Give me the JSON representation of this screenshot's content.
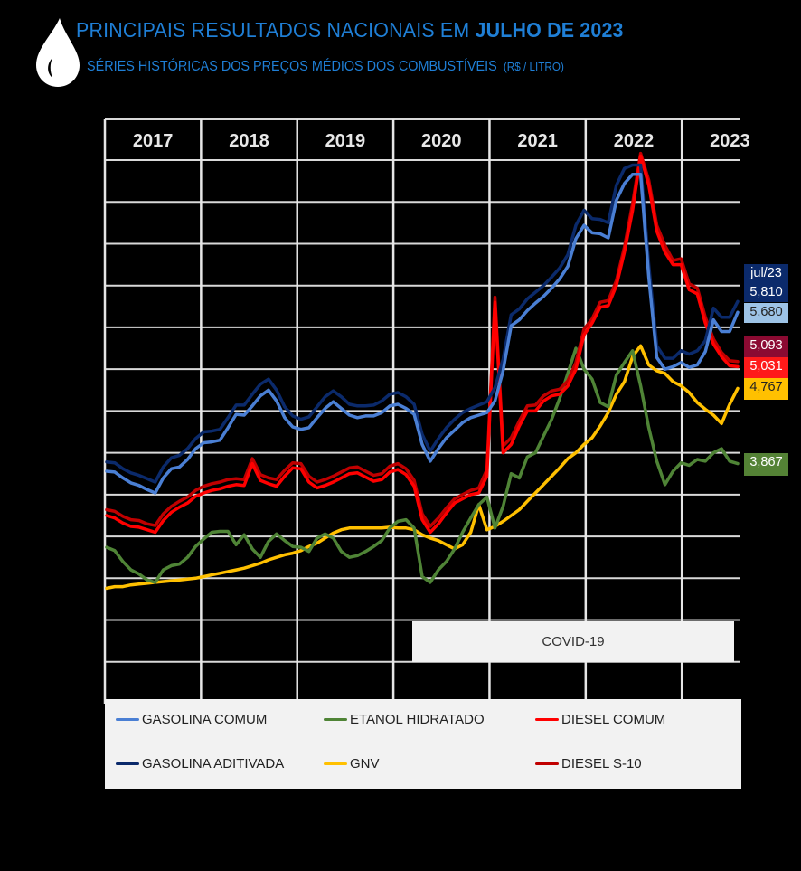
{
  "header": {
    "icon": "water-drop-icon",
    "title_prefix": "PRINCIPAIS  RESULTADOS NACIONAIS  EM ",
    "title_emphasis": "JULHO DE 2023",
    "subtitle": "SÉRIES HISTÓRICAS DOS PREÇOS MÉDIOS DOS COMBUSTÍVEIS",
    "unit": "(R$ / LITRO)"
  },
  "annotation": {
    "covid_label": "COVID-19"
  },
  "end_labels": {
    "period": "jul/23",
    "gasolina_aditivada": "5,810",
    "gasolina_comum": "5,680",
    "diesel_s10": "5,093",
    "diesel_comum": "5,031",
    "gnv": "4,767",
    "etanol": "3,867"
  },
  "legend": [
    {
      "label": "GASOLINA COMUM",
      "color": "#4a7fd4"
    },
    {
      "label": "ETANOL HIDRATADO",
      "color": "#4f8436"
    },
    {
      "label": "DIESEL COMUM",
      "color": "#ff0000"
    },
    {
      "label": "GASOLINA ADITIVADA",
      "color": "#0b2a6b"
    },
    {
      "label": "GNV",
      "color": "#ffc000"
    },
    {
      "label": "DIESEL S-10",
      "color": "#c00000"
    }
  ],
  "chart_data": {
    "type": "line",
    "title": "Séries históricas dos preços médios dos combustíveis",
    "xlabel": "",
    "ylabel": "R$ / litro",
    "ylim": [
      1.0,
      7.5
    ],
    "grid": true,
    "x_categories": [
      "2017",
      "2018",
      "2019",
      "2020",
      "2021",
      "2022",
      "2023"
    ],
    "x_start": "jan/2017",
    "x_end": "jul/2023",
    "frequency": "monthly",
    "legend_position": "bottom",
    "annotations": [
      {
        "label": "COVID-19",
        "from": "mar/2020",
        "to": "jul/2023"
      }
    ],
    "series": [
      {
        "name": "GASOLINA COMUM",
        "color": "#4a7fd4",
        "last": 5.68,
        "values": [
          3.78,
          3.77,
          3.7,
          3.64,
          3.61,
          3.56,
          3.52,
          3.7,
          3.81,
          3.83,
          3.92,
          4.05,
          4.12,
          4.13,
          4.15,
          4.3,
          4.46,
          4.45,
          4.56,
          4.68,
          4.75,
          4.62,
          4.42,
          4.31,
          4.28,
          4.3,
          4.42,
          4.53,
          4.61,
          4.53,
          4.45,
          4.42,
          4.44,
          4.44,
          4.48,
          4.56,
          4.58,
          4.53,
          4.46,
          4.1,
          3.9,
          4.05,
          4.18,
          4.27,
          4.36,
          4.42,
          4.45,
          4.48,
          4.62,
          4.98,
          5.52,
          5.59,
          5.7,
          5.79,
          5.87,
          5.97,
          6.08,
          6.23,
          6.56,
          6.72,
          6.63,
          6.62,
          6.57,
          7.02,
          7.22,
          7.33,
          7.33,
          6.1,
          5.14,
          5.0,
          5.03,
          5.08,
          5.02,
          5.05,
          5.21,
          5.59,
          5.45,
          5.45,
          5.68
        ]
      },
      {
        "name": "GASOLINA ADITIVADA",
        "color": "#0b2a6b",
        "last": 5.81,
        "values": [
          3.89,
          3.88,
          3.81,
          3.76,
          3.73,
          3.69,
          3.65,
          3.83,
          3.94,
          3.97,
          4.05,
          4.17,
          4.25,
          4.26,
          4.28,
          4.42,
          4.57,
          4.57,
          4.7,
          4.82,
          4.88,
          4.75,
          4.55,
          4.44,
          4.4,
          4.43,
          4.55,
          4.67,
          4.74,
          4.67,
          4.58,
          4.56,
          4.56,
          4.57,
          4.62,
          4.7,
          4.72,
          4.67,
          4.58,
          4.22,
          4.02,
          4.17,
          4.3,
          4.4,
          4.48,
          4.53,
          4.57,
          4.61,
          4.78,
          5.12,
          5.65,
          5.72,
          5.84,
          5.92,
          6.0,
          6.1,
          6.21,
          6.37,
          6.72,
          6.9,
          6.8,
          6.79,
          6.75,
          7.2,
          7.4,
          7.44,
          7.44,
          6.25,
          5.28,
          5.13,
          5.13,
          5.22,
          5.18,
          5.22,
          5.34,
          5.73,
          5.62,
          5.62,
          5.81
        ]
      },
      {
        "name": "ETANOL HIDRATADO",
        "color": "#4f8436",
        "last": 3.867,
        "values": [
          2.87,
          2.83,
          2.7,
          2.6,
          2.55,
          2.48,
          2.45,
          2.6,
          2.65,
          2.67,
          2.75,
          2.88,
          2.97,
          3.05,
          3.06,
          3.06,
          2.9,
          3.02,
          2.85,
          2.75,
          2.94,
          3.03,
          2.95,
          2.88,
          2.87,
          2.82,
          2.98,
          3.03,
          2.98,
          2.82,
          2.75,
          2.77,
          2.82,
          2.88,
          2.95,
          3.1,
          3.18,
          3.2,
          3.1,
          2.52,
          2.45,
          2.6,
          2.7,
          2.85,
          3.05,
          3.22,
          3.38,
          3.47,
          3.1,
          3.36,
          3.75,
          3.7,
          3.95,
          4.0,
          4.2,
          4.4,
          4.65,
          4.95,
          5.25,
          5.0,
          4.88,
          4.6,
          4.55,
          4.93,
          5.08,
          5.22,
          4.8,
          4.3,
          3.9,
          3.62,
          3.78,
          3.88,
          3.85,
          3.92,
          3.9,
          4.0,
          4.05,
          3.9,
          3.87
        ]
      },
      {
        "name": "DIESEL COMUM",
        "color": "#ff0000",
        "last": 5.031,
        "values": [
          3.25,
          3.22,
          3.16,
          3.12,
          3.11,
          3.08,
          3.05,
          3.19,
          3.29,
          3.35,
          3.4,
          3.48,
          3.52,
          3.55,
          3.57,
          3.6,
          3.62,
          3.61,
          3.87,
          3.67,
          3.63,
          3.6,
          3.72,
          3.82,
          3.81,
          3.65,
          3.58,
          3.61,
          3.65,
          3.7,
          3.75,
          3.76,
          3.71,
          3.66,
          3.68,
          3.77,
          3.8,
          3.74,
          3.6,
          3.2,
          3.05,
          3.15,
          3.28,
          3.4,
          3.45,
          3.5,
          3.52,
          3.72,
          5.8,
          4.0,
          4.1,
          4.32,
          4.5,
          4.5,
          4.62,
          4.68,
          4.7,
          4.8,
          5.0,
          5.41,
          5.55,
          5.74,
          5.76,
          6.0,
          6.4,
          6.9,
          7.55,
          7.2,
          6.65,
          6.4,
          6.25,
          6.25,
          5.95,
          5.9,
          5.55,
          5.3,
          5.15,
          5.04,
          5.03
        ]
      },
      {
        "name": "DIESEL S-10",
        "color": "#c00000",
        "last": 5.093,
        "values": [
          3.32,
          3.3,
          3.24,
          3.2,
          3.19,
          3.15,
          3.13,
          3.27,
          3.36,
          3.42,
          3.47,
          3.55,
          3.6,
          3.63,
          3.65,
          3.68,
          3.69,
          3.68,
          3.93,
          3.74,
          3.7,
          3.68,
          3.79,
          3.88,
          3.87,
          3.72,
          3.65,
          3.68,
          3.72,
          3.77,
          3.82,
          3.83,
          3.78,
          3.73,
          3.75,
          3.84,
          3.87,
          3.81,
          3.67,
          3.27,
          3.12,
          3.22,
          3.34,
          3.45,
          3.5,
          3.55,
          3.58,
          3.8,
          5.86,
          4.08,
          4.18,
          4.38,
          4.56,
          4.57,
          4.68,
          4.74,
          4.76,
          4.86,
          5.08,
          5.48,
          5.6,
          5.8,
          5.82,
          6.06,
          6.46,
          6.98,
          7.58,
          7.26,
          6.72,
          6.48,
          6.3,
          6.32,
          6.02,
          5.97,
          5.62,
          5.36,
          5.2,
          5.1,
          5.09
        ]
      },
      {
        "name": "GNV",
        "color": "#ffc000",
        "last": 4.767,
        "values": [
          2.38,
          2.4,
          2.4,
          2.42,
          2.43,
          2.44,
          2.45,
          2.46,
          2.47,
          2.48,
          2.49,
          2.5,
          2.52,
          2.54,
          2.56,
          2.58,
          2.6,
          2.62,
          2.65,
          2.68,
          2.72,
          2.75,
          2.78,
          2.8,
          2.83,
          2.88,
          2.92,
          2.98,
          3.04,
          3.08,
          3.1,
          3.1,
          3.1,
          3.1,
          3.1,
          3.11,
          3.1,
          3.1,
          3.08,
          3.02,
          2.98,
          2.95,
          2.9,
          2.85,
          2.9,
          3.05,
          3.38,
          3.08,
          3.12,
          3.18,
          3.25,
          3.32,
          3.42,
          3.52,
          3.62,
          3.72,
          3.82,
          3.93,
          4.0,
          4.1,
          4.18,
          4.32,
          4.48,
          4.7,
          4.85,
          5.15,
          5.28,
          5.05,
          4.98,
          4.95,
          4.85,
          4.8,
          4.72,
          4.6,
          4.52,
          4.45,
          4.35,
          4.58,
          4.77
        ]
      }
    ]
  }
}
